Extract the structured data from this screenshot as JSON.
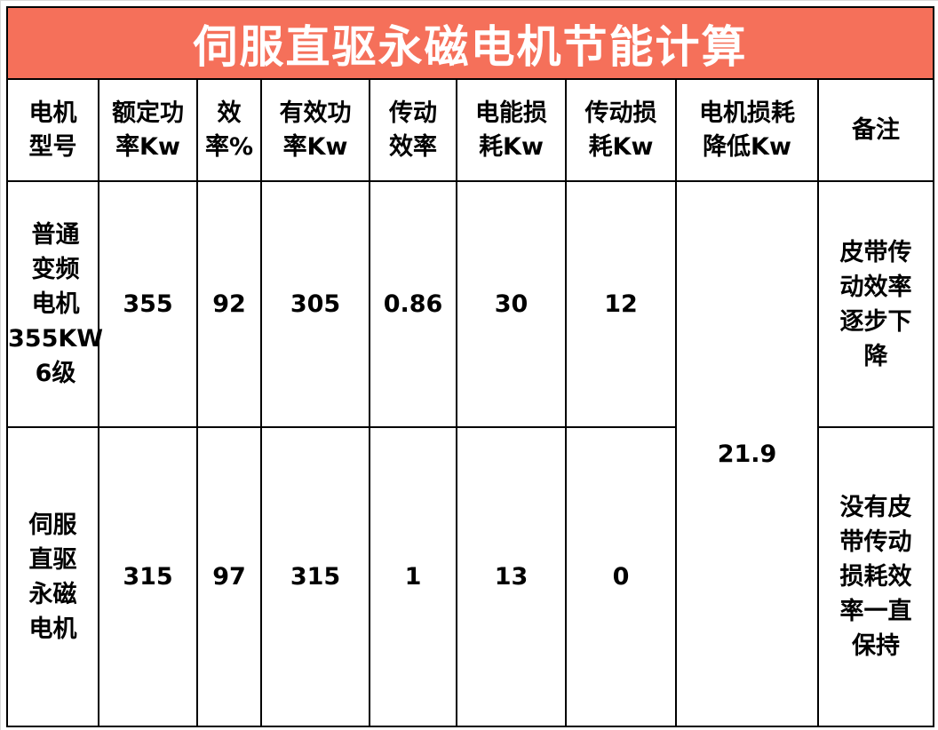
{
  "title": "伺服直驱永磁电机节能计算",
  "headers": [
    "电机\n型号",
    "额定功\n率Kw",
    "效\n率%",
    "有效功\n率Kw",
    "传动\n效率",
    "电能损\n耗Kw",
    "传动损\n耗Kw",
    "电机损耗\n降低Kw",
    "备注"
  ],
  "rows": [
    {
      "model": "普通\n变频\n电机\n355KW\n6级",
      "rated_power": "355",
      "efficiency": "92",
      "effective_power": "305",
      "transmission_efficiency": "0.86",
      "energy_loss": "30",
      "transmission_loss": "12",
      "note": "皮带传\n动效率\n逐步下\n降"
    },
    {
      "model": "伺服\n直驱\n永磁\n电机",
      "rated_power": "315",
      "efficiency": "97",
      "effective_power": "315",
      "transmission_efficiency": "1",
      "energy_loss": "13",
      "transmission_loss": "0",
      "note": "没有皮\n带传动\n损耗效\n率一直\n保持"
    }
  ],
  "loss_reduction": "21.9",
  "colors": {
    "title_bg": "#F5705A",
    "title_text": "#FFFFFF"
  }
}
